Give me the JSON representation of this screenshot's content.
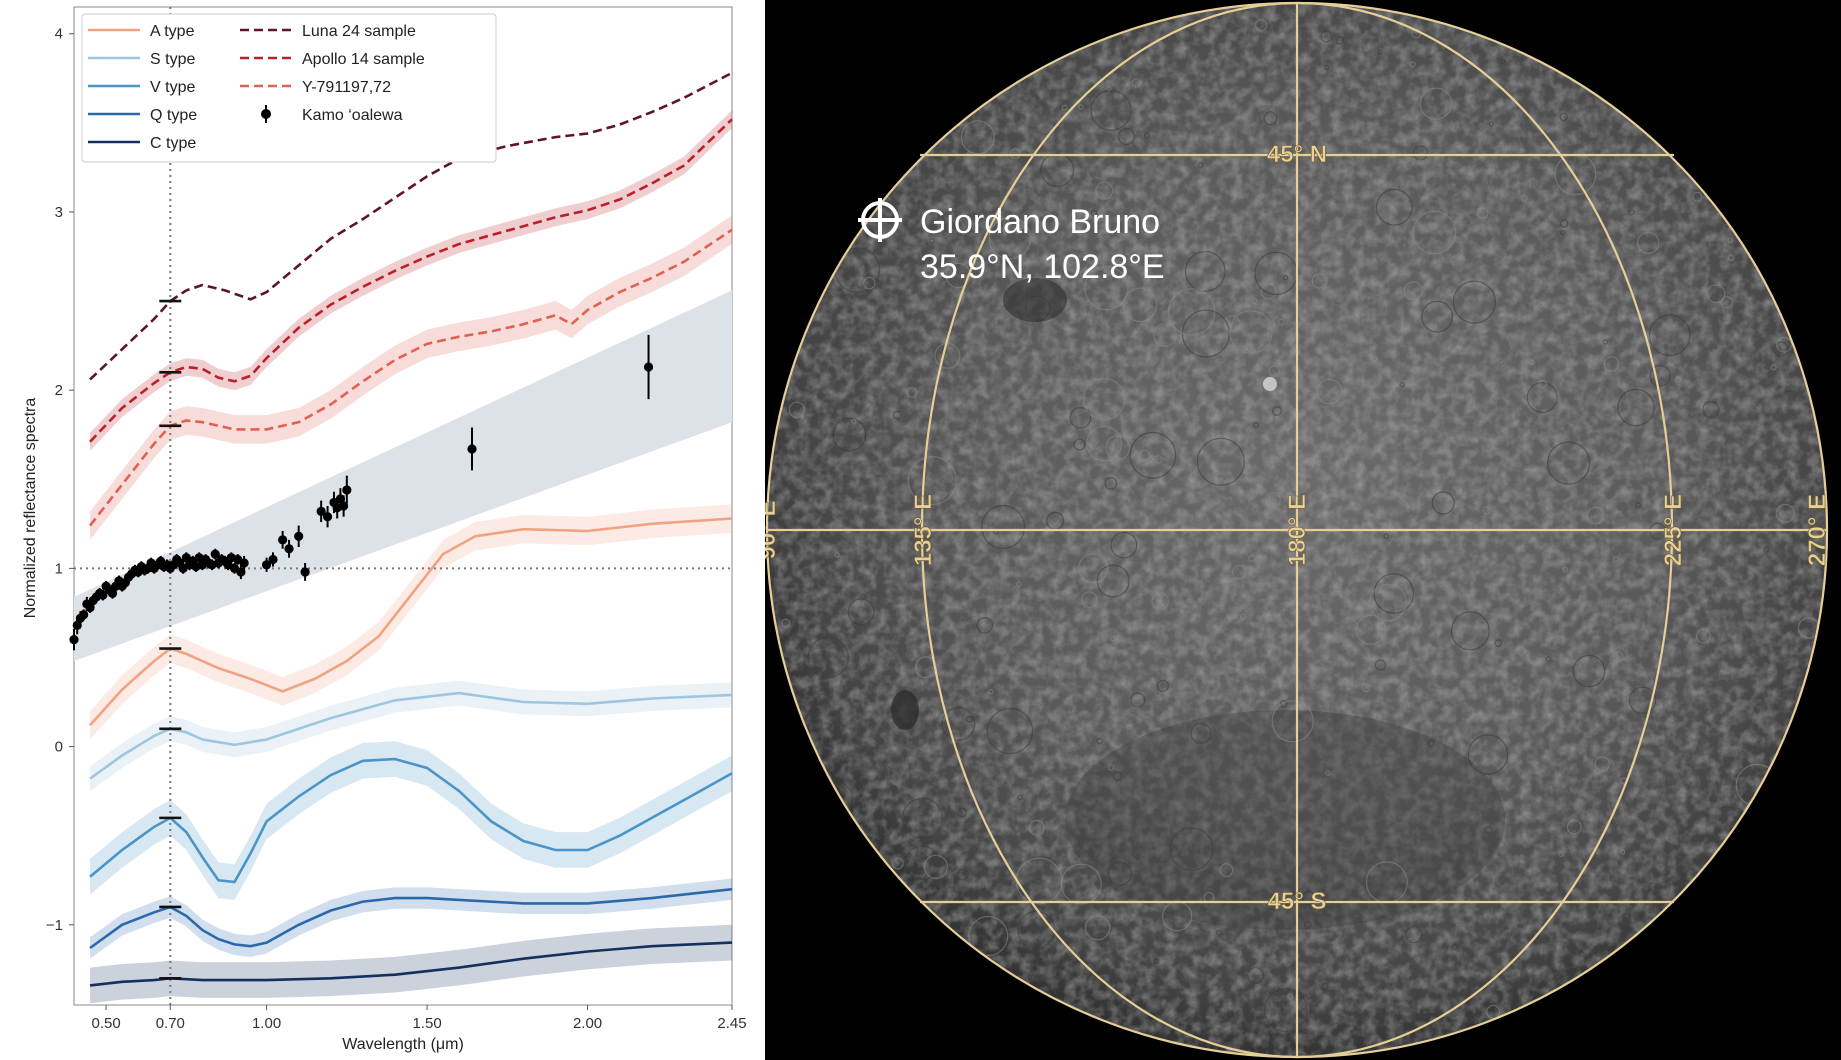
{
  "chart_data": {
    "type": "line",
    "xlabel": "Wavelength (μm)",
    "ylabel": "Normalized reflectance spectra",
    "xlim": [
      0.4,
      2.45
    ],
    "ylim": [
      -1.45,
      4.15
    ],
    "xticks": [
      {
        "value": 0.5,
        "label": "0.50"
      },
      {
        "value": 0.7,
        "label": "0.70"
      },
      {
        "value": 1.0,
        "label": "1.00"
      },
      {
        "value": 1.5,
        "label": "1.50"
      },
      {
        "value": 2.0,
        "label": "2.00"
      },
      {
        "value": 2.45,
        "label": "2.45"
      }
    ],
    "yticks": [
      {
        "value": -1,
        "label": "−1"
      },
      {
        "value": 0,
        "label": "0"
      },
      {
        "value": 1,
        "label": "1"
      },
      {
        "value": 2,
        "label": "2"
      },
      {
        "value": 3,
        "label": "3"
      },
      {
        "value": 4,
        "label": "4"
      }
    ],
    "reference_lines": {
      "x": 0.7,
      "y": 1.0,
      "style": "dotted",
      "color": "#777777"
    },
    "legend_position": "top",
    "series": [
      {
        "name": "A type",
        "color": "#f0a382",
        "dash": "solid",
        "band": 0.08,
        "offset_mark": 0.55,
        "x": [
          0.45,
          0.55,
          0.65,
          0.7,
          0.75,
          0.85,
          0.95,
          1.05,
          1.15,
          1.25,
          1.35,
          1.45,
          1.55,
          1.65,
          1.8,
          2.0,
          2.2,
          2.45
        ],
        "y": [
          0.12,
          0.32,
          0.48,
          0.55,
          0.52,
          0.44,
          0.38,
          0.31,
          0.38,
          0.48,
          0.62,
          0.85,
          1.08,
          1.18,
          1.22,
          1.21,
          1.25,
          1.28
        ]
      },
      {
        "name": "S type",
        "color": "#9ec6e0",
        "dash": "solid",
        "band": 0.07,
        "offset_mark": 0.1,
        "x": [
          0.45,
          0.55,
          0.65,
          0.7,
          0.75,
          0.8,
          0.9,
          1.0,
          1.2,
          1.4,
          1.6,
          1.8,
          2.0,
          2.2,
          2.45
        ],
        "y": [
          -0.18,
          -0.05,
          0.06,
          0.1,
          0.08,
          0.04,
          0.01,
          0.04,
          0.16,
          0.26,
          0.3,
          0.25,
          0.24,
          0.27,
          0.29
        ]
      },
      {
        "name": "V type",
        "color": "#4b94c7",
        "dash": "solid",
        "band": 0.1,
        "offset_mark": -0.4,
        "x": [
          0.45,
          0.55,
          0.65,
          0.7,
          0.75,
          0.8,
          0.85,
          0.9,
          0.95,
          1.0,
          1.1,
          1.2,
          1.3,
          1.4,
          1.5,
          1.6,
          1.7,
          1.8,
          1.9,
          2.0,
          2.1,
          2.2,
          2.3,
          2.45
        ],
        "y": [
          -0.73,
          -0.58,
          -0.45,
          -0.4,
          -0.48,
          -0.62,
          -0.75,
          -0.76,
          -0.6,
          -0.42,
          -0.28,
          -0.16,
          -0.08,
          -0.07,
          -0.12,
          -0.25,
          -0.42,
          -0.53,
          -0.58,
          -0.58,
          -0.5,
          -0.4,
          -0.3,
          -0.15
        ]
      },
      {
        "name": "Q type",
        "color": "#2b69ab",
        "dash": "solid",
        "band": 0.06,
        "offset_mark": -0.9,
        "x": [
          0.45,
          0.55,
          0.65,
          0.7,
          0.75,
          0.8,
          0.85,
          0.9,
          0.95,
          1.0,
          1.1,
          1.2,
          1.3,
          1.4,
          1.5,
          1.6,
          1.8,
          2.0,
          2.2,
          2.45
        ],
        "y": [
          -1.13,
          -1.0,
          -0.93,
          -0.9,
          -0.95,
          -1.03,
          -1.08,
          -1.11,
          -1.12,
          -1.1,
          -1.0,
          -0.92,
          -0.87,
          -0.85,
          -0.85,
          -0.86,
          -0.88,
          -0.88,
          -0.85,
          -0.8
        ]
      },
      {
        "name": "C type",
        "color": "#13305f",
        "dash": "solid",
        "band": 0.1,
        "offset_mark": -1.3,
        "x": [
          0.45,
          0.55,
          0.65,
          0.7,
          0.8,
          1.0,
          1.2,
          1.4,
          1.6,
          1.8,
          2.0,
          2.2,
          2.45
        ],
        "y": [
          -1.34,
          -1.32,
          -1.31,
          -1.3,
          -1.31,
          -1.31,
          -1.3,
          -1.28,
          -1.24,
          -1.19,
          -1.15,
          -1.12,
          -1.1
        ]
      },
      {
        "name": "Luna 24 sample",
        "color": "#5e1331",
        "dash": "dashed",
        "band": 0.0,
        "offset_mark": 2.5,
        "x": [
          0.45,
          0.55,
          0.65,
          0.7,
          0.75,
          0.8,
          0.87,
          0.95,
          1.0,
          1.1,
          1.2,
          1.3,
          1.4,
          1.5,
          1.6,
          1.75,
          1.9,
          2.0,
          2.1,
          2.2,
          2.3,
          2.45
        ],
        "y": [
          2.06,
          2.23,
          2.4,
          2.5,
          2.56,
          2.59,
          2.56,
          2.51,
          2.55,
          2.7,
          2.85,
          2.96,
          3.08,
          3.2,
          3.3,
          3.37,
          3.42,
          3.44,
          3.49,
          3.56,
          3.64,
          3.78
        ]
      },
      {
        "name": "Apollo 14 sample",
        "color": "#b9202a",
        "dash": "dashed",
        "band": 0.05,
        "offset_mark": 2.1,
        "x": [
          0.45,
          0.55,
          0.65,
          0.7,
          0.75,
          0.8,
          0.85,
          0.9,
          0.95,
          1.0,
          1.1,
          1.2,
          1.3,
          1.4,
          1.5,
          1.6,
          1.7,
          1.8,
          1.9,
          2.0,
          2.1,
          2.2,
          2.3,
          2.45
        ],
        "y": [
          1.71,
          1.9,
          2.04,
          2.1,
          2.13,
          2.12,
          2.07,
          2.05,
          2.08,
          2.18,
          2.35,
          2.48,
          2.58,
          2.67,
          2.75,
          2.82,
          2.87,
          2.92,
          2.97,
          3.01,
          3.07,
          3.16,
          3.26,
          3.52
        ]
      },
      {
        "name": "Y-791197,72",
        "color": "#e06152",
        "dash": "dashed",
        "band": 0.08,
        "offset_mark": 1.8,
        "x": [
          0.45,
          0.55,
          0.65,
          0.7,
          0.75,
          0.8,
          0.9,
          1.0,
          1.1,
          1.2,
          1.3,
          1.4,
          1.5,
          1.6,
          1.7,
          1.8,
          1.9,
          1.95,
          2.0,
          2.1,
          2.2,
          2.3,
          2.45
        ],
        "y": [
          1.24,
          1.47,
          1.7,
          1.8,
          1.83,
          1.82,
          1.78,
          1.78,
          1.82,
          1.92,
          2.05,
          2.17,
          2.26,
          2.3,
          2.33,
          2.37,
          2.42,
          2.37,
          2.45,
          2.55,
          2.63,
          2.72,
          2.9
        ]
      }
    ],
    "kamo_oalewa": {
      "name": "Kamo ‘oalewa",
      "color": "#000000",
      "band": {
        "x": [
          0.4,
          2.45
        ],
        "lower": [
          0.48,
          1.82
        ],
        "upper": [
          0.84,
          2.56
        ],
        "color": "#dde1e8"
      },
      "x": [
        0.4,
        0.41,
        0.42,
        0.43,
        0.44,
        0.45,
        0.46,
        0.47,
        0.48,
        0.49,
        0.5,
        0.51,
        0.52,
        0.53,
        0.54,
        0.55,
        0.56,
        0.57,
        0.58,
        0.59,
        0.6,
        0.61,
        0.62,
        0.63,
        0.64,
        0.65,
        0.66,
        0.67,
        0.68,
        0.69,
        0.7,
        0.71,
        0.72,
        0.73,
        0.74,
        0.75,
        0.76,
        0.77,
        0.78,
        0.79,
        0.8,
        0.81,
        0.82,
        0.83,
        0.84,
        0.85,
        0.86,
        0.87,
        0.88,
        0.89,
        0.9,
        0.91,
        0.92,
        0.93,
        1.0,
        1.02,
        1.05,
        1.07,
        1.1,
        1.12,
        1.17,
        1.19,
        1.21,
        1.22,
        1.23,
        1.24,
        1.25,
        1.64,
        2.19
      ],
      "y": [
        0.6,
        0.68,
        0.72,
        0.74,
        0.8,
        0.78,
        0.82,
        0.84,
        0.86,
        0.85,
        0.9,
        0.88,
        0.86,
        0.9,
        0.93,
        0.9,
        0.92,
        0.95,
        0.97,
        0.99,
        0.98,
        1.01,
        0.99,
        1.0,
        1.03,
        1.0,
        1.02,
        1.04,
        1.01,
        1.02,
        1.0,
        1.02,
        1.05,
        1.03,
        1.0,
        1.06,
        1.02,
        1.04,
        1.01,
        1.06,
        1.02,
        1.05,
        1.03,
        1.02,
        1.08,
        1.03,
        1.05,
        1.04,
        1.02,
        1.06,
        1.0,
        1.05,
        0.98,
        1.03,
        1.02,
        1.05,
        1.16,
        1.11,
        1.18,
        0.98,
        1.32,
        1.29,
        1.37,
        1.34,
        1.39,
        1.35,
        1.44,
        1.67,
        2.13
      ],
      "err": [
        0.06,
        0.05,
        0.04,
        0.03,
        0.04,
        0.03,
        0.03,
        0.03,
        0.03,
        0.03,
        0.03,
        0.03,
        0.03,
        0.03,
        0.03,
        0.03,
        0.03,
        0.03,
        0.03,
        0.03,
        0.03,
        0.03,
        0.03,
        0.03,
        0.03,
        0.03,
        0.03,
        0.03,
        0.03,
        0.03,
        0.03,
        0.03,
        0.03,
        0.03,
        0.03,
        0.03,
        0.03,
        0.03,
        0.03,
        0.03,
        0.03,
        0.03,
        0.03,
        0.03,
        0.03,
        0.03,
        0.03,
        0.03,
        0.03,
        0.03,
        0.03,
        0.03,
        0.04,
        0.04,
        0.04,
        0.04,
        0.05,
        0.05,
        0.06,
        0.05,
        0.06,
        0.06,
        0.06,
        0.06,
        0.06,
        0.06,
        0.08,
        0.12,
        0.18
      ]
    }
  },
  "map": {
    "target": {
      "name": "Giordano Bruno",
      "coords": "35.9°N, 102.8°E"
    },
    "latitude_labels": [
      "45° N",
      "45° S"
    ],
    "longitude_labels": [
      "90° E",
      "135° E",
      "180° E",
      "225° E",
      "270° E"
    ],
    "grid_color": "#e5cf97",
    "background": "#000000"
  }
}
